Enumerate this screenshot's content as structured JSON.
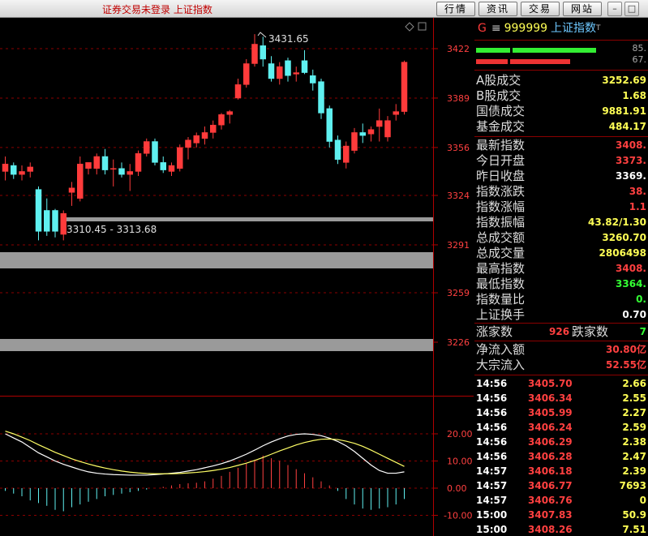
{
  "window": {
    "title": "证券交易未登录  上证指数",
    "buttons": [
      "行情",
      "资讯",
      "交易",
      "网站"
    ]
  },
  "chart_data": {
    "type": "candlestick",
    "y_ticks": [
      "3422",
      "3389",
      "3356",
      "3324",
      "3291",
      "3259",
      "3226"
    ],
    "y_range": [
      3213,
      3445
    ],
    "annotations": {
      "high": "3431.65",
      "range": "3310.45 - 3313.68"
    },
    "candles": [
      {
        "o": 3340,
        "h": 3350,
        "l": 3334,
        "c": 3345
      },
      {
        "o": 3344,
        "h": 3346,
        "l": 3335,
        "c": 3338
      },
      {
        "o": 3338,
        "h": 3344,
        "l": 3334,
        "c": 3340
      },
      {
        "o": 3340,
        "h": 3346,
        "l": 3336,
        "c": 3343
      },
      {
        "o": 3328,
        "h": 3330,
        "l": 3294,
        "c": 3300
      },
      {
        "o": 3314,
        "h": 3322,
        "l": 3297,
        "c": 3300
      },
      {
        "o": 3314,
        "h": 3315,
        "l": 3296,
        "c": 3300
      },
      {
        "o": 3298,
        "h": 3314,
        "l": 3294,
        "c": 3312
      },
      {
        "o": 3326,
        "h": 3333,
        "l": 3317,
        "c": 3329
      },
      {
        "o": 3322,
        "h": 3350,
        "l": 3320,
        "c": 3345
      },
      {
        "o": 3342,
        "h": 3346,
        "l": 3338,
        "c": 3346
      },
      {
        "o": 3342,
        "h": 3352,
        "l": 3338,
        "c": 3350
      },
      {
        "o": 3350,
        "h": 3355,
        "l": 3338,
        "c": 3341
      },
      {
        "o": 3342,
        "h": 3348,
        "l": 3330,
        "c": 3342
      },
      {
        "o": 3342,
        "h": 3346,
        "l": 3336,
        "c": 3338
      },
      {
        "o": 3338,
        "h": 3345,
        "l": 3327,
        "c": 3340
      },
      {
        "o": 3340,
        "h": 3354,
        "l": 3337,
        "c": 3352
      },
      {
        "o": 3352,
        "h": 3362,
        "l": 3350,
        "c": 3360
      },
      {
        "o": 3360,
        "h": 3362,
        "l": 3344,
        "c": 3346
      },
      {
        "o": 3346,
        "h": 3350,
        "l": 3339,
        "c": 3341
      },
      {
        "o": 3340,
        "h": 3346,
        "l": 3337,
        "c": 3344
      },
      {
        "o": 3342,
        "h": 3358,
        "l": 3340,
        "c": 3356
      },
      {
        "o": 3356,
        "h": 3363,
        "l": 3348,
        "c": 3361
      },
      {
        "o": 3359,
        "h": 3366,
        "l": 3356,
        "c": 3364
      },
      {
        "o": 3362,
        "h": 3370,
        "l": 3358,
        "c": 3366
      },
      {
        "o": 3366,
        "h": 3374,
        "l": 3362,
        "c": 3371
      },
      {
        "o": 3371,
        "h": 3379,
        "l": 3368,
        "c": 3378
      },
      {
        "o": 3378,
        "h": 3381,
        "l": 3372,
        "c": 3380
      },
      {
        "o": 3389,
        "h": 3402,
        "l": 3388,
        "c": 3398
      },
      {
        "o": 3398,
        "h": 3415,
        "l": 3396,
        "c": 3412
      },
      {
        "o": 3412,
        "h": 3431.65,
        "l": 3410,
        "c": 3425
      },
      {
        "o": 3424,
        "h": 3430,
        "l": 3410,
        "c": 3415
      },
      {
        "o": 3412,
        "h": 3417,
        "l": 3400,
        "c": 3402
      },
      {
        "o": 3402,
        "h": 3413,
        "l": 3398,
        "c": 3410
      },
      {
        "o": 3414,
        "h": 3416,
        "l": 3400,
        "c": 3404
      },
      {
        "o": 3405,
        "h": 3410,
        "l": 3400,
        "c": 3406
      },
      {
        "o": 3414,
        "h": 3421,
        "l": 3405,
        "c": 3406
      },
      {
        "o": 3404,
        "h": 3408,
        "l": 3394,
        "c": 3399
      },
      {
        "o": 3400,
        "h": 3402,
        "l": 3375,
        "c": 3379
      },
      {
        "o": 3382,
        "h": 3384,
        "l": 3356,
        "c": 3360
      },
      {
        "o": 3361,
        "h": 3364,
        "l": 3345,
        "c": 3348
      },
      {
        "o": 3346,
        "h": 3360,
        "l": 3342,
        "c": 3357
      },
      {
        "o": 3354,
        "h": 3369,
        "l": 3352,
        "c": 3366
      },
      {
        "o": 3366,
        "h": 3372,
        "l": 3359,
        "c": 3364
      },
      {
        "o": 3365,
        "h": 3370,
        "l": 3360,
        "c": 3368
      },
      {
        "o": 3370,
        "h": 3382,
        "l": 3360,
        "c": 3374
      },
      {
        "o": 3363,
        "h": 3377,
        "l": 3360,
        "c": 3374
      },
      {
        "o": 3378,
        "h": 3385,
        "l": 3374,
        "c": 3380
      },
      {
        "o": 3380,
        "h": 3414,
        "l": 3378,
        "c": 3413
      }
    ],
    "indicator": {
      "y_ticks": [
        "20.00",
        "10.00",
        "0.00",
        "-10.00"
      ],
      "y_range": [
        -17,
        33
      ],
      "dif": [
        20,
        18.5,
        17,
        15,
        13,
        11.5,
        10,
        8.8,
        7.8,
        6.8,
        6,
        5.5,
        5.2,
        5,
        4.9,
        4.8,
        4.8,
        4.8,
        5,
        5.2,
        5.5,
        5.8,
        6.3,
        6.8,
        7.5,
        8.2,
        9,
        10,
        11.2,
        12.5,
        14,
        15.6,
        17,
        18.2,
        19.2,
        19.8,
        20,
        19.8,
        19.3,
        18.4,
        17.2,
        15.6,
        13.5,
        11,
        8.5,
        6.5,
        5.5,
        5.5,
        6
      ],
      "dea": [
        21,
        20,
        18.8,
        17.5,
        16,
        14.6,
        13.2,
        12,
        10.8,
        9.8,
        8.9,
        8.1,
        7.4,
        6.8,
        6.3,
        5.9,
        5.6,
        5.4,
        5.3,
        5.3,
        5.3,
        5.4,
        5.6,
        5.8,
        6.1,
        6.5,
        7,
        7.6,
        8.4,
        9.2,
        10.2,
        11.3,
        12.5,
        13.7,
        14.8,
        15.9,
        16.8,
        17.5,
        18,
        18.1,
        17.9,
        17.3,
        16.5,
        15.4,
        14,
        12.5,
        11,
        9.5,
        8
      ],
      "macd": [
        -1,
        -2,
        -3,
        -4.5,
        -5.5,
        -6.5,
        -8,
        -8.5,
        -7,
        -6,
        -5,
        -4,
        -3,
        -2.5,
        -2,
        -1.5,
        -1,
        -0.5,
        0,
        0.5,
        1,
        1.5,
        1.8,
        2,
        2.5,
        3.5,
        4.5,
        6,
        7.5,
        9,
        10.5,
        12,
        11,
        10,
        8.5,
        7,
        5.5,
        4,
        2.5,
        1,
        -1,
        -4,
        -6,
        -7.5,
        -8,
        -7.5,
        -7,
        -6,
        -4
      ]
    }
  },
  "panel": {
    "header": {
      "market": "G",
      "menu_icon": "menu-icon",
      "code": "999999",
      "name": "上证指数",
      "mark": "T"
    },
    "bars": [
      {
        "color": "#33ee33",
        "label": "85."
      },
      {
        "color": "#ee3333",
        "label": "67."
      }
    ],
    "volume_rows": [
      {
        "label": "A股成交",
        "value": "3252.69",
        "color": "yellow"
      },
      {
        "label": "B股成交",
        "value": "1.68",
        "color": "yellow"
      },
      {
        "label": "国债成交",
        "value": "9881.91",
        "color": "yellow"
      },
      {
        "label": "基金成交",
        "value": "484.17",
        "color": "yellow"
      }
    ],
    "index_rows": [
      {
        "label": "最新指数",
        "value": "3408.",
        "color": "red"
      },
      {
        "label": "今日开盘",
        "value": "3373.",
        "color": "red"
      },
      {
        "label": "昨日收盘",
        "value": "3369.",
        "color": "white"
      },
      {
        "label": "指数涨跌",
        "value": "38.",
        "color": "red"
      },
      {
        "label": "指数涨幅",
        "value": "1.1",
        "color": "red"
      },
      {
        "label": "指数振幅",
        "value": "43.82/1.30",
        "color": "yellow"
      },
      {
        "label": "总成交额",
        "value": "3260.70",
        "color": "yellow"
      },
      {
        "label": "总成交量",
        "value": "2806498",
        "color": "yellow"
      },
      {
        "label": "最高指数",
        "value": "3408.",
        "color": "red"
      },
      {
        "label": "最低指数",
        "value": "3364.",
        "color": "green"
      },
      {
        "label": "指数量比",
        "value": "0.",
        "color": "green"
      },
      {
        "label": "上证换手",
        "value": "0.70",
        "color": "white"
      }
    ],
    "breadth": {
      "up_label": "涨家数",
      "up_value": "926",
      "down_label": "跌家数",
      "down_value": "7"
    },
    "flow_rows": [
      {
        "label": "净流入额",
        "value": "30.80亿",
        "color": "red"
      },
      {
        "label": "大宗流入",
        "value": "52.55亿",
        "color": "red"
      }
    ],
    "ticks": [
      {
        "time": "14:56",
        "price": "3405.70",
        "vol": "2.66"
      },
      {
        "time": "14:56",
        "price": "3406.34",
        "vol": "2.55"
      },
      {
        "time": "14:56",
        "price": "3405.99",
        "vol": "2.27"
      },
      {
        "time": "14:56",
        "price": "3406.24",
        "vol": "2.59"
      },
      {
        "time": "14:56",
        "price": "3406.29",
        "vol": "2.38"
      },
      {
        "time": "14:56",
        "price": "3406.28",
        "vol": "2.47"
      },
      {
        "time": "14:57",
        "price": "3406.18",
        "vol": "2.39"
      },
      {
        "time": "14:57",
        "price": "3406.77",
        "vol": "7693"
      },
      {
        "time": "14:57",
        "price": "3406.76",
        "vol": "0"
      },
      {
        "time": "15:00",
        "price": "3407.83",
        "vol": "50.9"
      },
      {
        "time": "15:00",
        "price": "3408.26",
        "vol": "7.51"
      }
    ]
  }
}
